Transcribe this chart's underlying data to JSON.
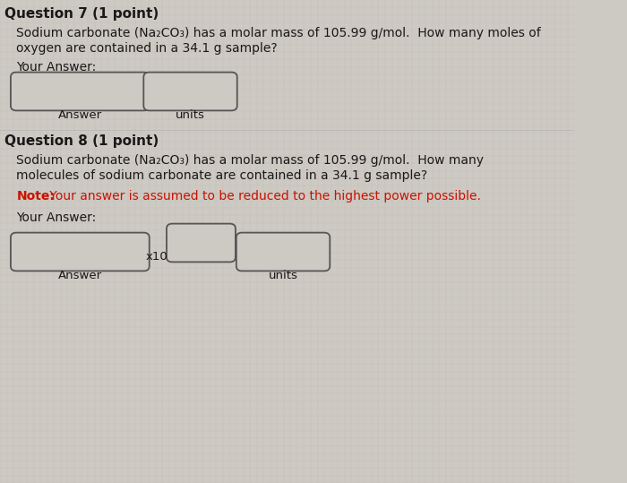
{
  "bg_color": "#cdc9c3",
  "text_color": "#1a1818",
  "red_color": "#cc1100",
  "box_facecolor": "#cdc9c3",
  "box_edge_color": "#555555",
  "grid_color": "#bbbbaa",
  "q7_header": "Question 7 (1 point)",
  "q7_line1": "Sodium carbonate (Na₂CO₃) has a molar mass of 105.99 g/mol.  How many moles of",
  "q7_line2": "oxygen are contained in a 34.1 g sample?",
  "q7_your_answer": "Your Answer:",
  "q7_answer_label": "Answer",
  "q7_units_label": "units",
  "q8_header": "Question 8 (1 point)",
  "q8_line1": "Sodium carbonate (Na₂CO₃) has a molar mass of 105.99 g/mol.  How many",
  "q8_line2": "molecules of sodium carbonate are contained in a 34.1 g sample?",
  "q8_note_bold": "Note:",
  "q8_note_rest": " Your answer is assumed to be reduced to the highest power possible.",
  "q8_your_answer": "Your Answer:",
  "q8_answer_label": "Answer",
  "q8_units_label": "units",
  "x10_label": "x10",
  "figwidth": 7.0,
  "figheight": 5.39,
  "dpi": 100
}
